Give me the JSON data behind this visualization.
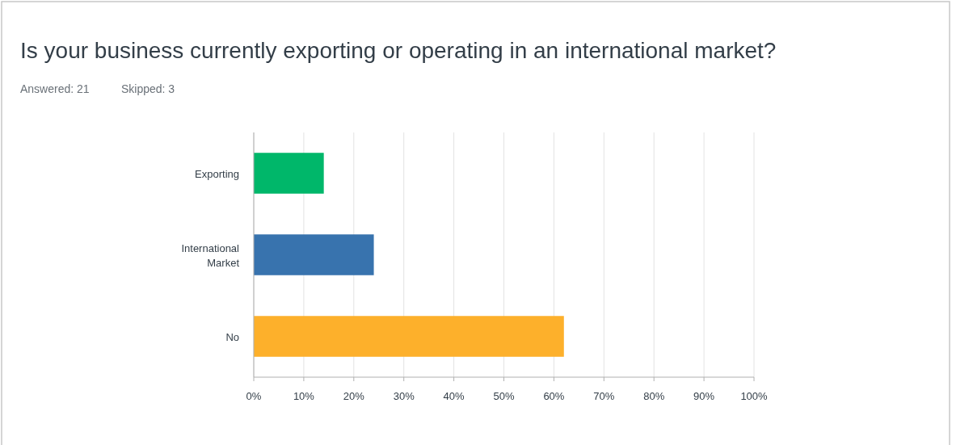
{
  "chart_data": {
    "type": "bar",
    "orientation": "horizontal",
    "title": "Is your business currently exporting or operating in an international market?",
    "subtitle": "Answered: 21",
    "annotations": [
      "Skipped: 3"
    ],
    "categories": [
      "Exporting",
      "International Market",
      "No"
    ],
    "values": [
      14,
      24,
      62
    ],
    "colors": [
      "#00b76a",
      "#3873ae",
      "#fdb02b"
    ],
    "xlim": [
      0,
      100
    ],
    "xticks": [
      {
        "value": 0,
        "label": "0%"
      },
      {
        "value": 10,
        "label": "10%"
      },
      {
        "value": 20,
        "label": "20%"
      },
      {
        "value": 30,
        "label": "30%"
      },
      {
        "value": 40,
        "label": "40%"
      },
      {
        "value": 50,
        "label": "50%"
      },
      {
        "value": 60,
        "label": "60%"
      },
      {
        "value": 70,
        "label": "70%"
      },
      {
        "value": 80,
        "label": "80%"
      },
      {
        "value": 90,
        "label": "90%"
      },
      {
        "value": 100,
        "label": "100%"
      }
    ],
    "grid": "x"
  }
}
